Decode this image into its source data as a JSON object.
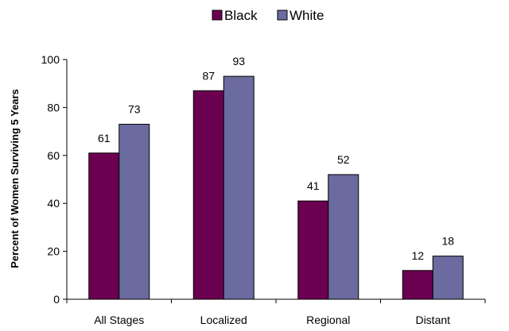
{
  "chart_data": {
    "type": "bar",
    "title": "",
    "xlabel": "",
    "ylabel": "Percent of Women Surviving 5 Years",
    "ylim": [
      0,
      100
    ],
    "yticks": [
      0,
      20,
      40,
      60,
      80,
      100
    ],
    "categories": [
      "All Stages",
      "Localized",
      "Regional",
      "Distant"
    ],
    "series": [
      {
        "name": "Black",
        "values": [
          61,
          87,
          41,
          12
        ],
        "color": "#6b0050"
      },
      {
        "name": "White",
        "values": [
          73,
          93,
          52,
          18
        ],
        "color": "#6b6b9f"
      }
    ],
    "legend": "top-center",
    "grid": false
  }
}
